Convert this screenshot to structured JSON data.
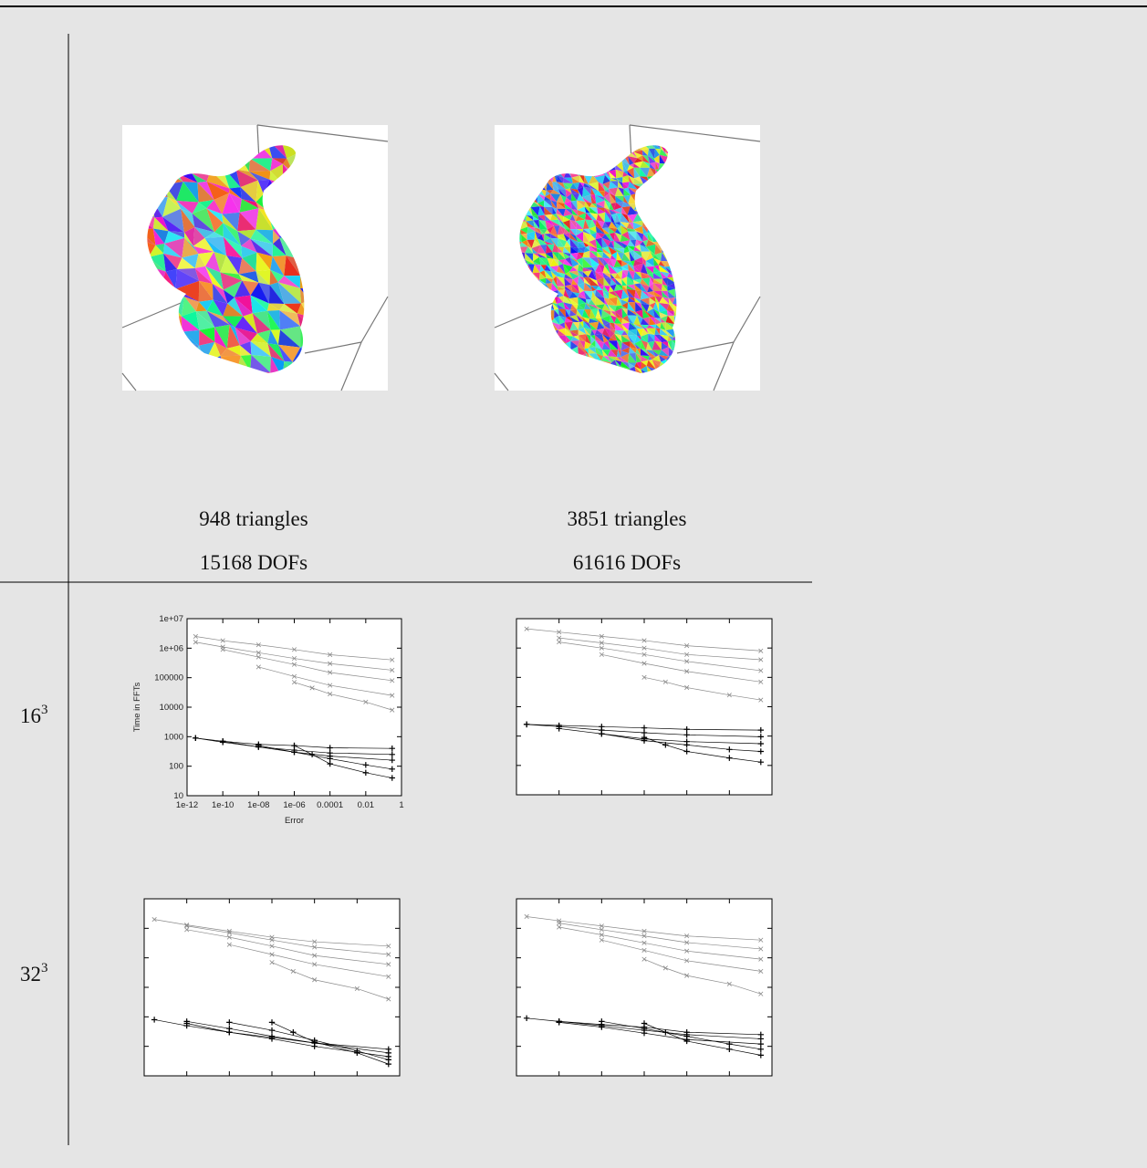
{
  "columns": [
    {
      "triangles": "948 triangles",
      "dofs": "15168 DOFs"
    },
    {
      "triangles": "3851 triangles",
      "dofs": "61616 DOFs"
    }
  ],
  "row_labels": [
    {
      "base": "16",
      "exp": "3"
    },
    {
      "base": "32",
      "exp": "3"
    }
  ],
  "chart_data": [
    {
      "type": "line",
      "xscale": "log",
      "yscale": "log",
      "ylabel": "Time in FFTs",
      "xlabel": "Error",
      "xlim": [
        1e-12,
        1
      ],
      "ylim": [
        10,
        10000000
      ],
      "xticks": [
        {
          "value": 1e-12,
          "label": "1e-12"
        },
        {
          "value": 1e-10,
          "label": "1e-10"
        },
        {
          "value": 1e-08,
          "label": "1e-08"
        },
        {
          "value": 1e-06,
          "label": "1e-06"
        },
        0.0001,
        0.01,
        1
      ],
      "yticks": [
        10,
        100,
        1000,
        10000,
        100000,
        {
          "value": 1000000,
          "label": "1e+06"
        },
        {
          "value": 10000000,
          "label": "1e+07"
        }
      ],
      "series": [
        {
          "color": "#8a8a8a",
          "marker": "x",
          "x": [
            3e-12,
            1e-10,
            1e-08,
            1e-06,
            0.0001,
            0.3
          ],
          "values": [
            2500000,
            1800000,
            1300000,
            900000,
            600000,
            400000
          ]
        },
        {
          "color": "#8a8a8a",
          "marker": "x",
          "x": [
            3e-12,
            1e-10,
            1e-08,
            1e-06,
            0.0001,
            0.3
          ],
          "values": [
            1600000,
            1100000,
            700000,
            450000,
            300000,
            180000
          ]
        },
        {
          "color": "#8a8a8a",
          "marker": "x",
          "x": [
            1e-10,
            1e-08,
            1e-06,
            0.0001,
            0.3
          ],
          "values": [
            900000,
            500000,
            280000,
            150000,
            80000
          ]
        },
        {
          "color": "#8a8a8a",
          "marker": "x",
          "x": [
            1e-08,
            1e-06,
            0.0001,
            0.3
          ],
          "values": [
            230000,
            110000,
            55000,
            25000
          ]
        },
        {
          "color": "#8a8a8a",
          "marker": "x",
          "x": [
            1e-06,
            1e-05,
            0.0001,
            0.01,
            0.3
          ],
          "values": [
            70000,
            45000,
            28000,
            15000,
            8000
          ]
        },
        {
          "color": "#000000",
          "marker": "+",
          "x": [
            3e-12,
            1e-10,
            1e-08,
            1e-06,
            0.0001,
            0.3
          ],
          "values": [
            900,
            700,
            550,
            500,
            420,
            400
          ]
        },
        {
          "color": "#000000",
          "marker": "+",
          "x": [
            3e-12,
            1e-10,
            1e-08,
            1e-06,
            0.0001,
            0.3
          ],
          "values": [
            900,
            650,
            450,
            350,
            280,
            250
          ]
        },
        {
          "color": "#000000",
          "marker": "+",
          "x": [
            1e-10,
            1e-08,
            1e-06,
            0.0001,
            0.3
          ],
          "values": [
            700,
            450,
            300,
            220,
            160
          ]
        },
        {
          "color": "#000000",
          "marker": "+",
          "x": [
            1e-08,
            1e-06,
            0.0001,
            0.01,
            0.3
          ],
          "values": [
            500,
            300,
            180,
            110,
            80
          ]
        },
        {
          "color": "#000000",
          "marker": "+",
          "x": [
            1e-06,
            1e-05,
            0.0001,
            0.01,
            0.3
          ],
          "values": [
            500,
            250,
            120,
            60,
            40
          ]
        }
      ]
    },
    {
      "type": "line",
      "xscale": "log",
      "yscale": "log",
      "xlim": [
        1e-12,
        1
      ],
      "ylim": [
        10,
        10000000
      ],
      "xticks": [
        1e-12,
        1e-10,
        1e-08,
        1e-06,
        0.0001,
        0.01,
        1
      ],
      "yticks": [
        10,
        100,
        1000,
        10000,
        100000,
        1000000,
        10000000
      ],
      "series": [
        {
          "color": "#8a8a8a",
          "marker": "x",
          "x": [
            3e-12,
            1e-10,
            1e-08,
            1e-06,
            0.0001,
            0.3
          ],
          "values": [
            4500000,
            3500000,
            2500000,
            1800000,
            1200000,
            800000
          ]
        },
        {
          "color": "#8a8a8a",
          "marker": "x",
          "x": [
            1e-10,
            1e-08,
            1e-06,
            0.0001,
            0.3
          ],
          "values": [
            2200000,
            1500000,
            1000000,
            600000,
            400000
          ]
        },
        {
          "color": "#8a8a8a",
          "marker": "x",
          "x": [
            1e-10,
            1e-08,
            1e-06,
            0.0001,
            0.3
          ],
          "values": [
            1600000,
            1000000,
            600000,
            350000,
            170000
          ]
        },
        {
          "color": "#8a8a8a",
          "marker": "x",
          "x": [
            1e-08,
            1e-06,
            0.0001,
            0.3
          ],
          "values": [
            600000,
            300000,
            160000,
            70000
          ]
        },
        {
          "color": "#8a8a8a",
          "marker": "x",
          "x": [
            1e-06,
            1e-05,
            0.0001,
            0.01,
            0.3
          ],
          "values": [
            100000,
            70000,
            45000,
            25000,
            17000
          ]
        },
        {
          "color": "#000000",
          "marker": "+",
          "x": [
            3e-12,
            1e-10,
            1e-08,
            1e-06,
            0.0001,
            0.3
          ],
          "values": [
            2500,
            2300,
            2100,
            1900,
            1700,
            1600
          ]
        },
        {
          "color": "#000000",
          "marker": "+",
          "x": [
            3e-12,
            1e-10,
            1e-08,
            1e-06,
            0.0001,
            0.3
          ],
          "values": [
            2500,
            2100,
            1600,
            1300,
            1100,
            950
          ]
        },
        {
          "color": "#000000",
          "marker": "+",
          "x": [
            1e-10,
            1e-08,
            1e-06,
            0.0001,
            0.3
          ],
          "values": [
            1800,
            1200,
            800,
            650,
            550
          ]
        },
        {
          "color": "#000000",
          "marker": "+",
          "x": [
            1e-08,
            1e-06,
            0.0001,
            0.01,
            0.3
          ],
          "values": [
            1200,
            700,
            500,
            350,
            300
          ]
        },
        {
          "color": "#000000",
          "marker": "+",
          "x": [
            1e-06,
            1e-05,
            0.0001,
            0.01,
            0.3
          ],
          "values": [
            900,
            500,
            300,
            180,
            130
          ]
        }
      ]
    },
    {
      "type": "line",
      "xscale": "log",
      "yscale": "log",
      "xlim": [
        1e-12,
        1
      ],
      "ylim": [
        10,
        10000000
      ],
      "xticks": [
        1e-12,
        1e-10,
        1e-08,
        1e-06,
        0.0001,
        0.01,
        1
      ],
      "yticks": [
        10,
        100,
        1000,
        10000,
        100000,
        1000000,
        10000000
      ],
      "series": [
        {
          "color": "#8a8a8a",
          "marker": "x",
          "x": [
            3e-12,
            1e-10,
            1e-08,
            1e-06,
            0.0001,
            0.3
          ],
          "values": [
            2000000,
            1300000,
            800000,
            500000,
            350000,
            250000
          ]
        },
        {
          "color": "#8a8a8a",
          "marker": "x",
          "x": [
            1e-10,
            1e-08,
            1e-06,
            0.0001,
            0.3
          ],
          "values": [
            1200000,
            700000,
            400000,
            230000,
            130000
          ]
        },
        {
          "color": "#8a8a8a",
          "marker": "x",
          "x": [
            1e-10,
            1e-08,
            1e-06,
            0.0001,
            0.3
          ],
          "values": [
            900000,
            500000,
            250000,
            120000,
            60000
          ]
        },
        {
          "color": "#8a8a8a",
          "marker": "x",
          "x": [
            1e-08,
            1e-06,
            0.0001,
            0.3
          ],
          "values": [
            280000,
            130000,
            60000,
            23000
          ]
        },
        {
          "color": "#8a8a8a",
          "marker": "x",
          "x": [
            1e-06,
            1e-05,
            0.0001,
            0.01,
            0.3
          ],
          "values": [
            70000,
            35000,
            18000,
            9000,
            4000
          ]
        },
        {
          "color": "#000000",
          "marker": "+",
          "x": [
            3e-12,
            1e-10,
            1e-08,
            1e-06,
            0.0001,
            0.3
          ],
          "values": [
            800,
            500,
            300,
            200,
            130,
            80
          ]
        },
        {
          "color": "#000000",
          "marker": "+",
          "x": [
            1e-10,
            1e-08,
            1e-06,
            0.0001,
            0.3
          ],
          "values": [
            700,
            400,
            220,
            130,
            60
          ]
        },
        {
          "color": "#000000",
          "marker": "+",
          "x": [
            1e-10,
            1e-08,
            1e-06,
            0.0001,
            0.3
          ],
          "values": [
            600,
            300,
            180,
            100,
            45
          ]
        },
        {
          "color": "#000000",
          "marker": "+",
          "x": [
            1e-08,
            1e-06,
            0.0001,
            0.01,
            0.3
          ],
          "values": [
            650,
            350,
            160,
            70,
            35
          ]
        },
        {
          "color": "#000000",
          "marker": "+",
          "x": [
            1e-06,
            1e-05,
            0.0001,
            0.01,
            0.3
          ],
          "values": [
            650,
            300,
            140,
            60,
            25
          ]
        }
      ]
    },
    {
      "type": "line",
      "xscale": "log",
      "yscale": "log",
      "xlim": [
        1e-12,
        1
      ],
      "ylim": [
        10,
        10000000
      ],
      "xticks": [
        1e-12,
        1e-10,
        1e-08,
        1e-06,
        0.0001,
        0.01,
        1
      ],
      "yticks": [
        10,
        100,
        1000,
        10000,
        100000,
        1000000,
        10000000
      ],
      "series": [
        {
          "color": "#8a8a8a",
          "marker": "x",
          "x": [
            3e-12,
            1e-10,
            1e-08,
            1e-06,
            0.0001,
            0.3
          ],
          "values": [
            2500000,
            1800000,
            1200000,
            800000,
            550000,
            400000
          ]
        },
        {
          "color": "#8a8a8a",
          "marker": "x",
          "x": [
            1e-10,
            1e-08,
            1e-06,
            0.0001,
            0.3
          ],
          "values": [
            1500000,
            900000,
            550000,
            330000,
            200000
          ]
        },
        {
          "color": "#8a8a8a",
          "marker": "x",
          "x": [
            1e-10,
            1e-08,
            1e-06,
            0.0001,
            0.3
          ],
          "values": [
            1100000,
            600000,
            320000,
            170000,
            90000
          ]
        },
        {
          "color": "#8a8a8a",
          "marker": "x",
          "x": [
            1e-08,
            1e-06,
            0.0001,
            0.3
          ],
          "values": [
            400000,
            180000,
            80000,
            35000
          ]
        },
        {
          "color": "#8a8a8a",
          "marker": "x",
          "x": [
            1e-06,
            1e-05,
            0.0001,
            0.01,
            0.3
          ],
          "values": [
            90000,
            45000,
            25000,
            13000,
            6000
          ]
        },
        {
          "color": "#000000",
          "marker": "+",
          "x": [
            3e-12,
            1e-10,
            1e-08,
            1e-06,
            0.0001,
            0.3
          ],
          "values": [
            900,
            700,
            550,
            450,
            300,
            250
          ]
        },
        {
          "color": "#000000",
          "marker": "+",
          "x": [
            1e-10,
            1e-08,
            1e-06,
            0.0001,
            0.3
          ],
          "values": [
            700,
            500,
            350,
            250,
            180
          ]
        },
        {
          "color": "#000000",
          "marker": "+",
          "x": [
            1e-10,
            1e-08,
            1e-06,
            0.0001,
            0.3
          ],
          "values": [
            650,
            450,
            280,
            170,
            120
          ]
        },
        {
          "color": "#000000",
          "marker": "+",
          "x": [
            1e-08,
            1e-06,
            0.0001,
            0.01,
            0.3
          ],
          "values": [
            700,
            400,
            220,
            120,
            80
          ]
        },
        {
          "color": "#000000",
          "marker": "+",
          "x": [
            1e-06,
            1e-05,
            0.0001,
            0.01,
            0.3
          ],
          "values": [
            600,
            300,
            150,
            80,
            50
          ]
        }
      ]
    }
  ]
}
